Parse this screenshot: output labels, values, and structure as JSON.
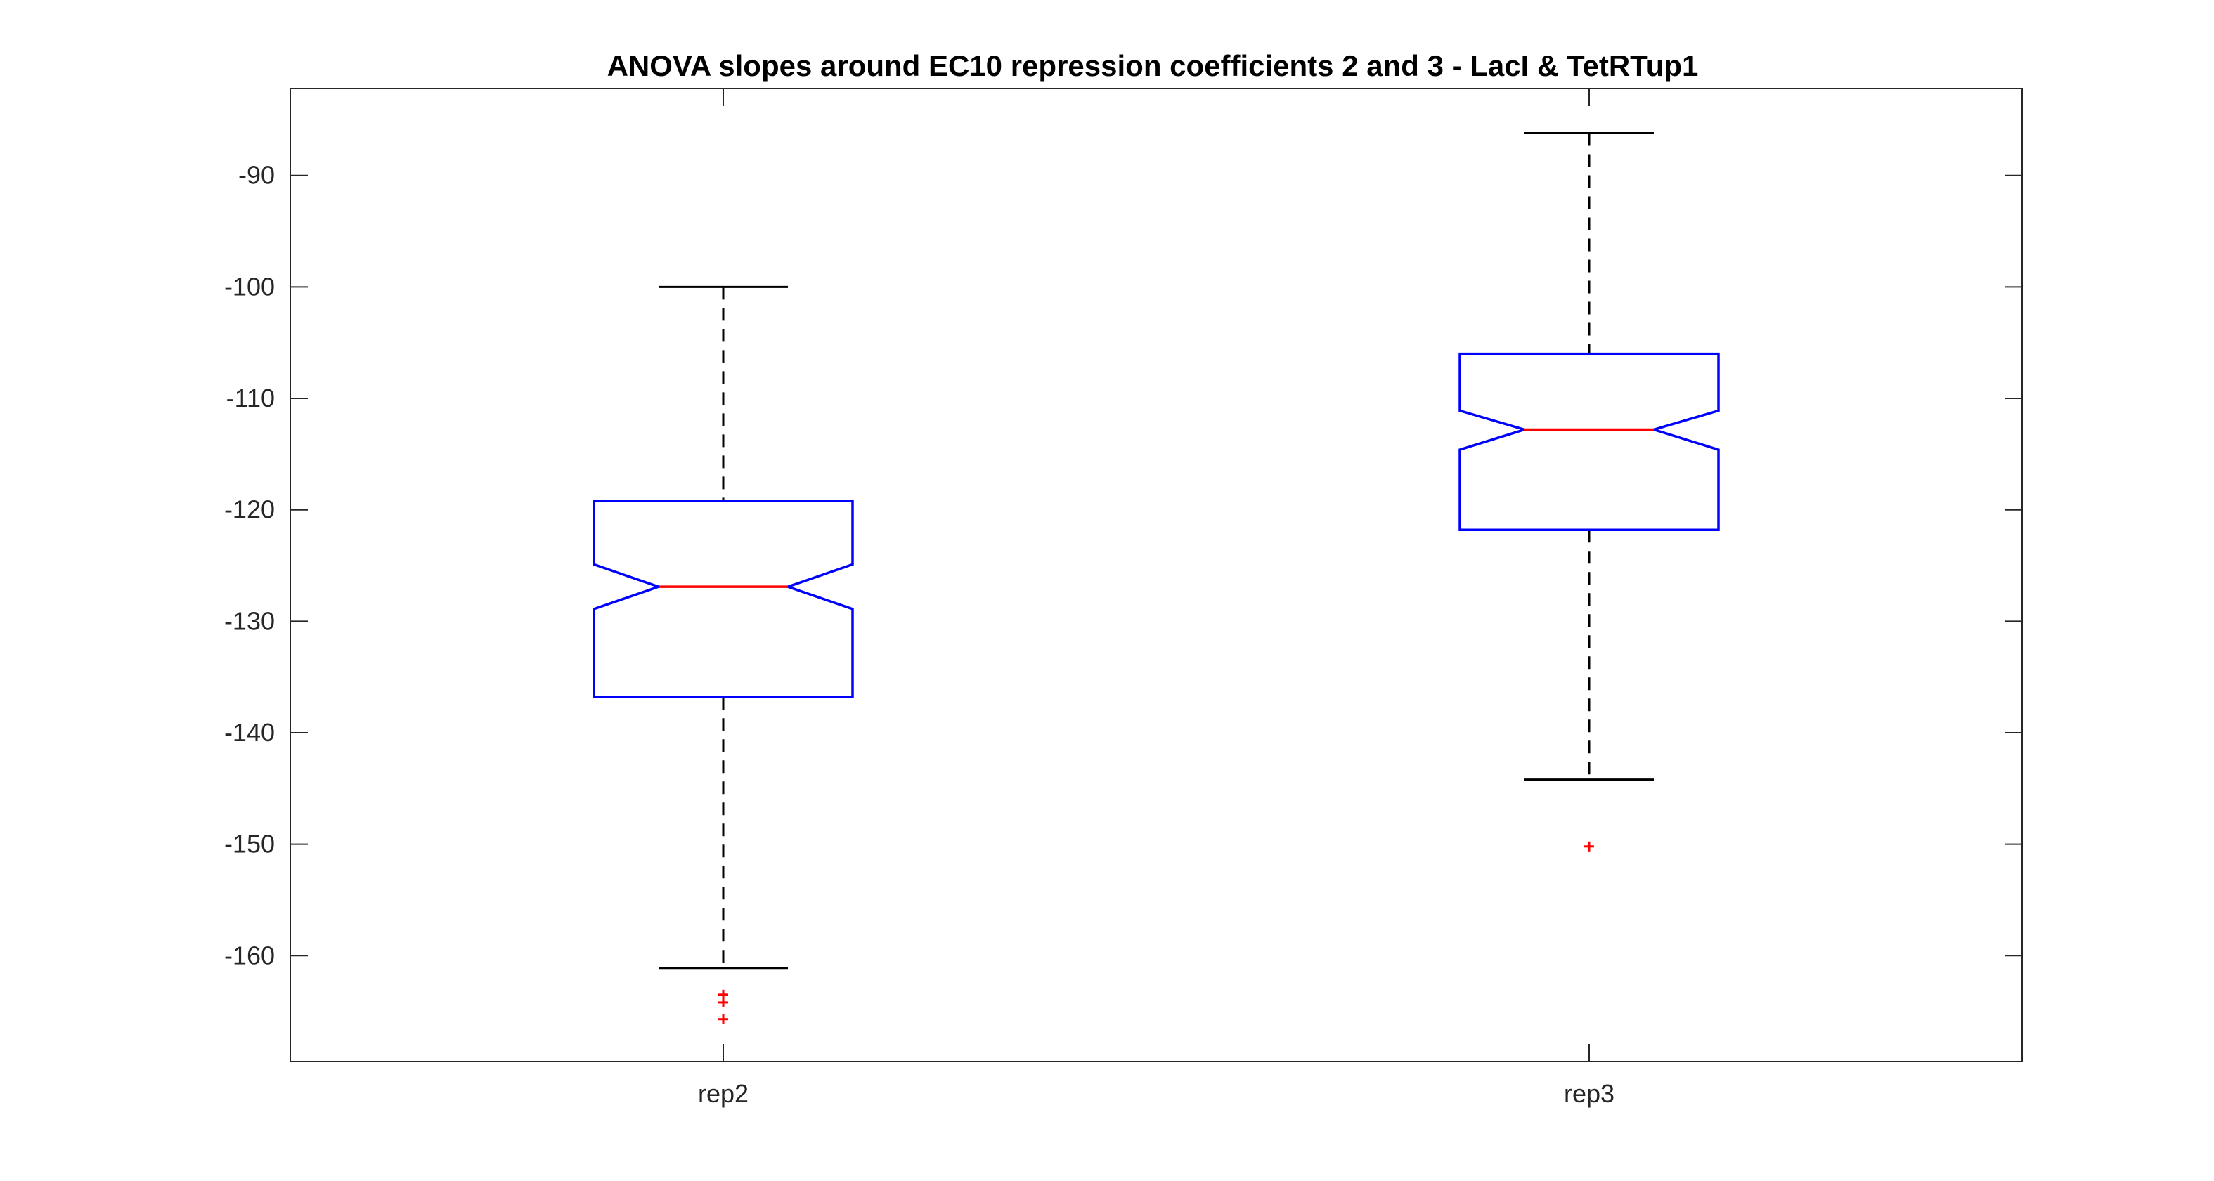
{
  "chart_data": {
    "type": "boxplot",
    "title": "ANOVA slopes around EC10 repression coefficients 2 and 3 - LacI & TetRTup1",
    "xlabel": "",
    "ylabel": "",
    "categories": [
      "rep2",
      "rep3"
    ],
    "ylim": [
      -169.5,
      -82.2
    ],
    "yticks": [
      -160,
      -150,
      -140,
      -130,
      -120,
      -110,
      -100,
      -90
    ],
    "ytick_labels": [
      "-160",
      "-150",
      "-140",
      "-130",
      "-120",
      "-110",
      "-100",
      "-90"
    ],
    "notched": true,
    "grid": false,
    "boxes": [
      {
        "name": "rep2",
        "whisker_low": -161.1,
        "q1": -136.8,
        "notch_low": -128.9,
        "median": -126.9,
        "notch_high": -124.9,
        "q3": -119.2,
        "whisker_high": -100.0,
        "outliers": [
          -163.5,
          -164.2,
          -165.7
        ]
      },
      {
        "name": "rep3",
        "whisker_low": -144.2,
        "q1": -121.8,
        "notch_low": -114.6,
        "median": -112.8,
        "notch_high": -111.1,
        "q3": -106.0,
        "whisker_high": -86.2,
        "outliers": [
          -150.2
        ]
      }
    ],
    "colors": {
      "box": "#0000ff",
      "median": "#ff0000",
      "whisker": "#000000",
      "outlier": "#ff0000",
      "axis": "#262626"
    }
  }
}
